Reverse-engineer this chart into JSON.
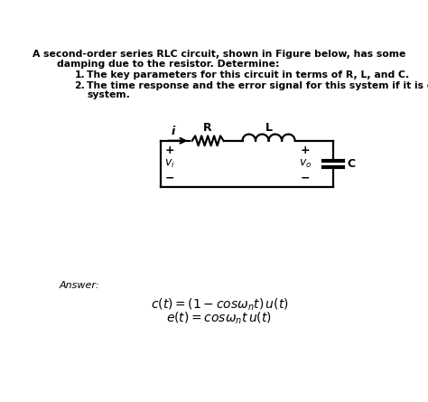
{
  "title_line1": "A second-order series RLC circuit, shown in Figure below, has some",
  "title_line2": "damping due to the resistor. Determine:",
  "item1": "The key parameters for this circuit in terms of R, L, and C.",
  "item2_line1": "The time response and the error signal for this system if it is called undamped",
  "item2_line2": "system.",
  "answer_label": "Answer:",
  "eq1": "$c(t) = (1 - cos\\omega_n t)\\, u(t)$",
  "eq2": "$e(t) = cos\\omega_n t\\, u(t)$",
  "bg_color": "#ffffff",
  "text_color": "#000000"
}
